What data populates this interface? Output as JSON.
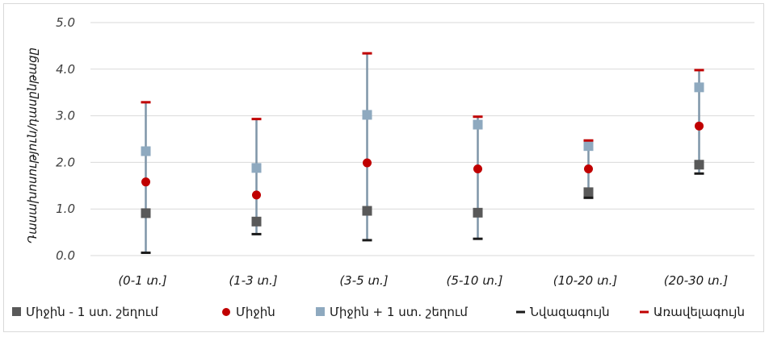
{
  "chart_data": {
    "type": "scatter",
    "ylabel": "Դասախոսություն/դասընթացը",
    "ylim": [
      0,
      5
    ],
    "yticks": [
      "0.0",
      "1.0",
      "2.0",
      "3.0",
      "4.0",
      "5.0"
    ],
    "categories": [
      "(0-1 տ.]",
      "(1-3 տ.]",
      "(3-5 տ.]",
      "(5-10 տ.]",
      "(10-20 տ.]",
      "(20-30 տ.]"
    ],
    "series": [
      {
        "name": "Միջին - 1 ստ. շեղում",
        "values": [
          0.91,
          0.73,
          0.96,
          0.92,
          1.36,
          1.95
        ],
        "color": "#595959",
        "marker": "square"
      },
      {
        "name": "Միջին",
        "values": [
          1.58,
          1.3,
          1.99,
          1.86,
          1.86,
          2.78
        ],
        "color": "#c00000",
        "marker": "circle"
      },
      {
        "name": "Միջին + 1 ստ. շեղում",
        "values": [
          2.24,
          1.88,
          3.02,
          2.81,
          2.35,
          3.61
        ],
        "color": "#8ea9bf",
        "marker": "square"
      },
      {
        "name": "Նվազագույն",
        "values": [
          0.06,
          0.46,
          0.33,
          0.36,
          1.24,
          1.76
        ],
        "color": "#1a1a1a",
        "marker": "dash"
      },
      {
        "name": "Առավելագույն",
        "values": [
          3.29,
          2.93,
          4.34,
          2.98,
          2.47,
          3.98
        ],
        "color": "#c00000",
        "marker": "dash"
      }
    ],
    "error_bar_color": "#7f95a8",
    "grid": true,
    "legend_position": "bottom"
  }
}
